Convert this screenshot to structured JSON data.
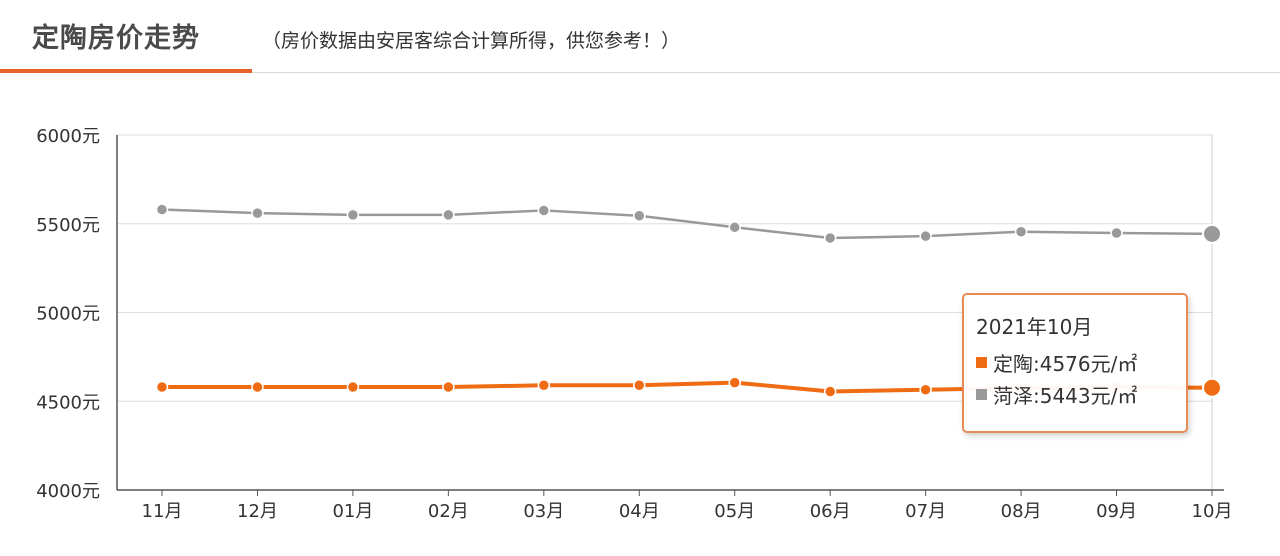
{
  "header": {
    "title": "定陶房价走势",
    "subtitle": "（房价数据由安居客综合计算所得，供您参考！）"
  },
  "colors": {
    "accent": "#e8622a",
    "series_dingtao": "#ef6c14",
    "series_heze": "#999999"
  },
  "tooltip": {
    "title": "2021年10月",
    "rows": [
      {
        "text": "定陶:4576元/㎡",
        "color": "#ef6c14"
      },
      {
        "text": "菏泽:5443元/㎡",
        "color": "#999999"
      }
    ]
  },
  "chart_data": {
    "type": "line",
    "title": "",
    "xlabel": "",
    "ylabel": "",
    "categories": [
      "11月",
      "12月",
      "01月",
      "02月",
      "03月",
      "04月",
      "05月",
      "06月",
      "07月",
      "08月",
      "09月",
      "10月"
    ],
    "yticks": [
      "4000元",
      "4500元",
      "5000元",
      "5500元",
      "6000元"
    ],
    "ylim": [
      4000,
      6000
    ],
    "grid": true,
    "series": [
      {
        "name": "定陶",
        "color": "#ef6c14",
        "values": [
          4580,
          4580,
          4580,
          4580,
          4590,
          4590,
          4605,
          4555,
          4565,
          4575,
          4580,
          4576
        ]
      },
      {
        "name": "菏泽",
        "color": "#999999",
        "values": [
          5580,
          5560,
          5550,
          5550,
          5575,
          5545,
          5480,
          5420,
          5430,
          5455,
          5448,
          5443
        ]
      }
    ]
  }
}
